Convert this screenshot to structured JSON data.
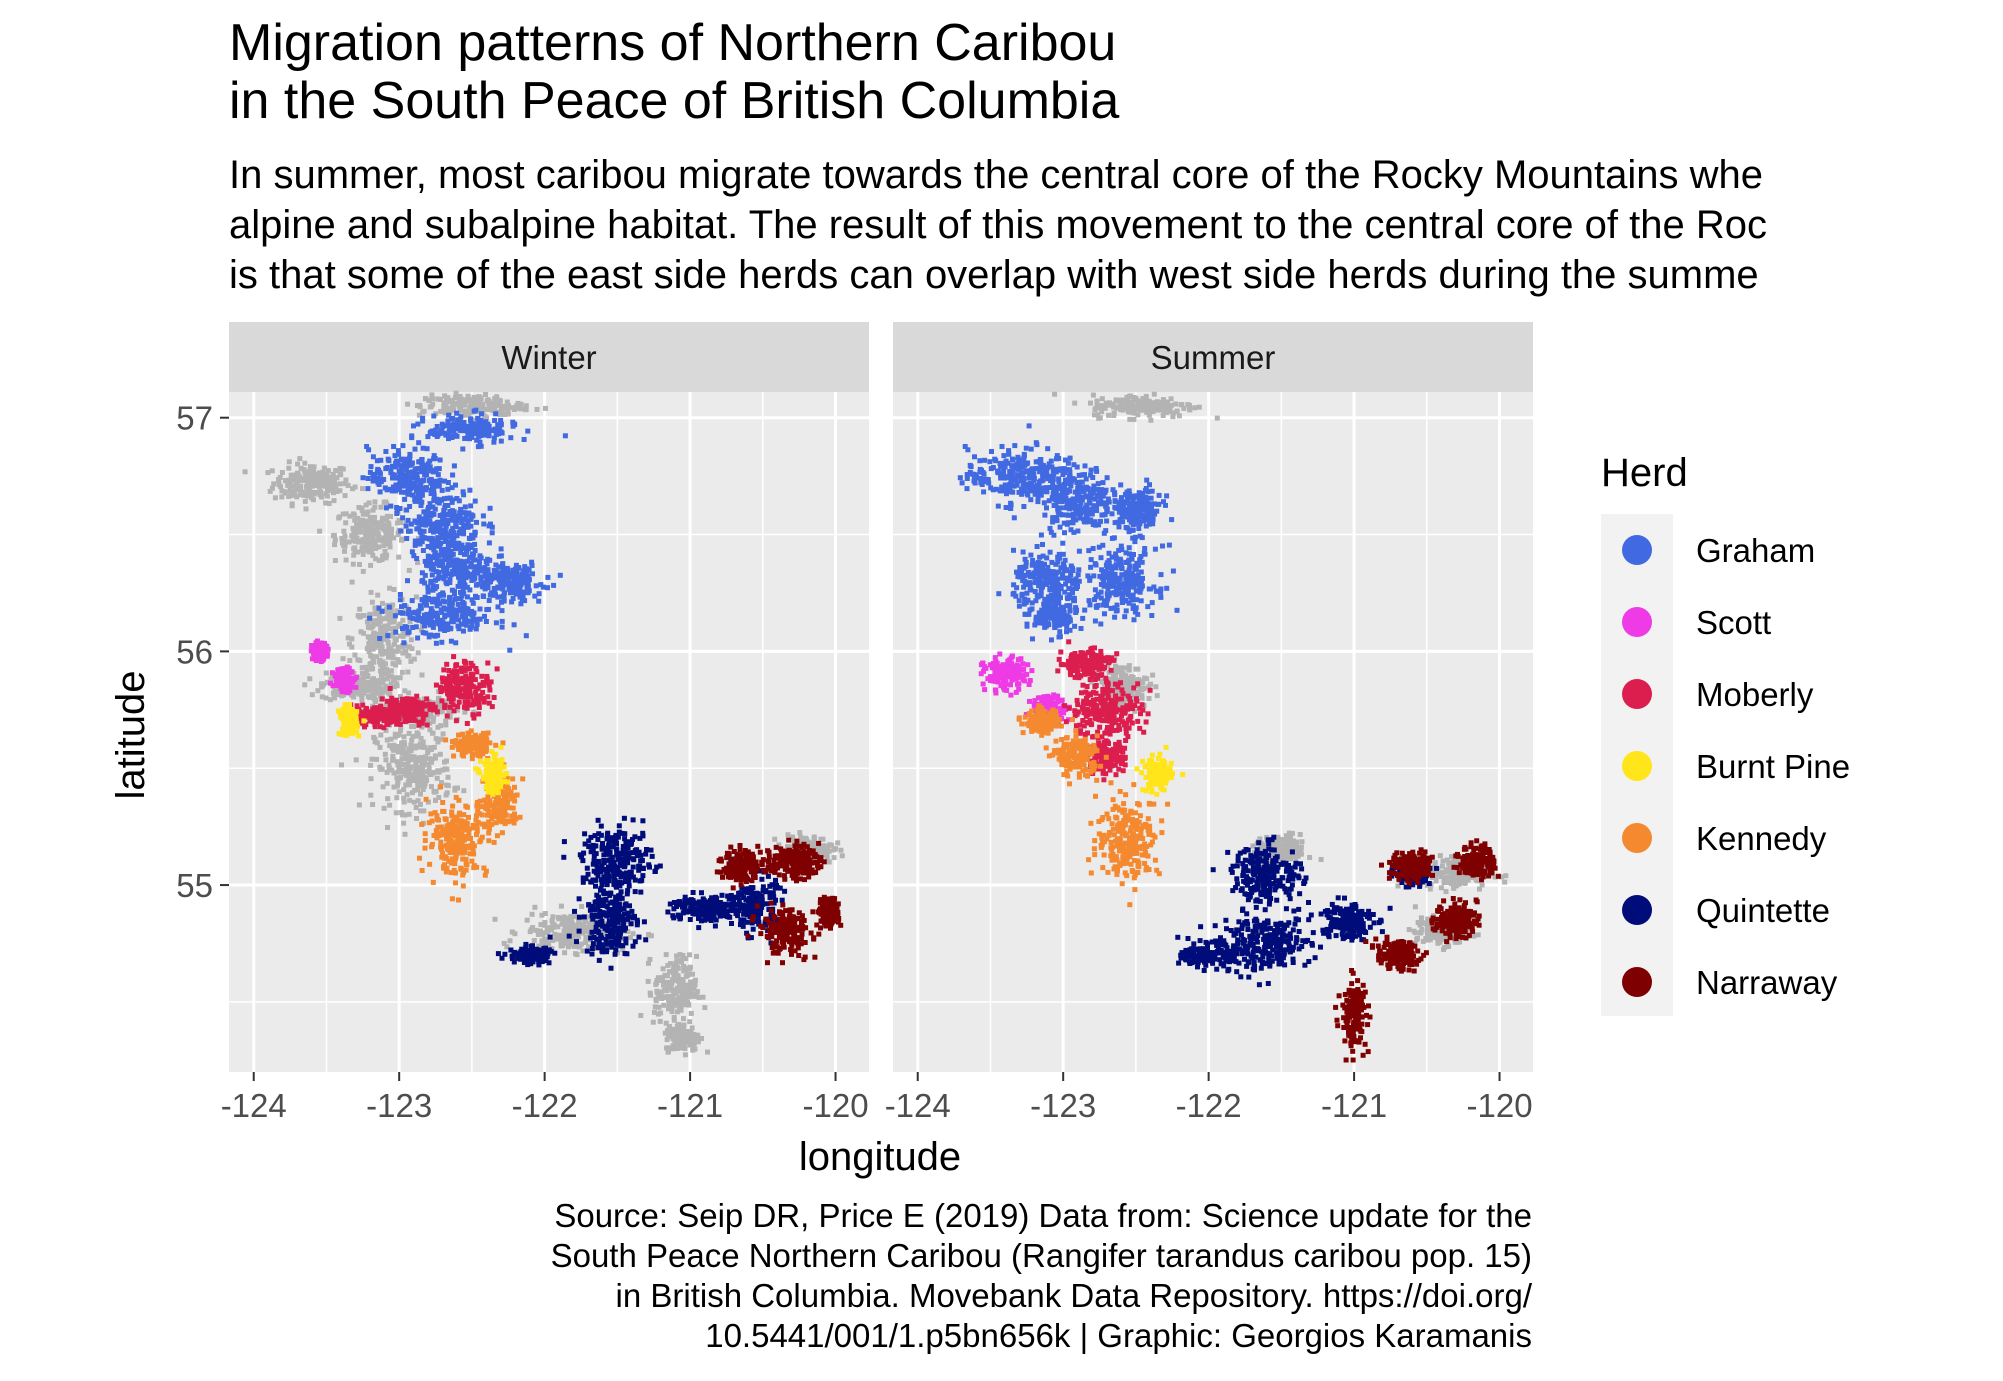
{
  "chart_data": {
    "type": "scatter",
    "title_lines": [
      "Migration patterns of Northern Caribou",
      "in the South Peace of British Columbia"
    ],
    "subtitle_lines": [
      "In summer, most caribou migrate towards the central core of the Rocky Mountains whe",
      "alpine and subalpine habitat. The result of this movement to the central core of the Roc",
      "is that some of the east side herds can overlap with west side herds during the summe"
    ],
    "caption_lines": [
      "Source: Seip DR, Price E (2019) Data from: Science update for the",
      "South Peace Northern Caribou (Rangifer tarandus caribou pop. 15)",
      "in British Columbia. Movebank Data Repository. https://doi.org/",
      "10.5441/001/1.p5bn656k | Graphic: Georgios Karamanis"
    ],
    "xlabel": "longitude",
    "ylabel": "latitude",
    "xlim": [
      -124.17,
      -119.77
    ],
    "ylim": [
      54.2,
      57.11
    ],
    "xticks": [
      -124,
      -123,
      -122,
      -121,
      -120
    ],
    "yticks": [
      55,
      56,
      57
    ],
    "xtick_labels": [
      "-124",
      "-123",
      "-122",
      "-121",
      "-120"
    ],
    "ytick_labels": [
      "55",
      "56",
      "57"
    ],
    "grid": true,
    "legend_position": "right",
    "legend_title": "Herd",
    "background_color": "#EBEBEB",
    "strip_color": "#D9D9D9",
    "other_color": "#B3B3B3",
    "facets": [
      {
        "name": "Winter",
        "series": [
          {
            "herd": "Graham",
            "clusters": [
              {
                "cx": -122.95,
                "cy": 56.75,
                "sx": 0.22,
                "sy": 0.1
              },
              {
                "cx": -122.7,
                "cy": 56.55,
                "sx": 0.22,
                "sy": 0.12
              },
              {
                "cx": -122.6,
                "cy": 56.35,
                "sx": 0.2,
                "sy": 0.09
              },
              {
                "cx": -122.25,
                "cy": 56.3,
                "sx": 0.2,
                "sy": 0.07
              },
              {
                "cx": -122.7,
                "cy": 56.15,
                "sx": 0.3,
                "sy": 0.08
              },
              {
                "cx": -122.5,
                "cy": 56.95,
                "sx": 0.25,
                "sy": 0.05
              }
            ]
          },
          {
            "herd": "Scott",
            "clusters": [
              {
                "cx": -123.55,
                "cy": 56.0,
                "sx": 0.04,
                "sy": 0.03
              },
              {
                "cx": -123.38,
                "cy": 55.88,
                "sx": 0.06,
                "sy": 0.04
              }
            ]
          },
          {
            "herd": "Moberly",
            "clusters": [
              {
                "cx": -122.55,
                "cy": 55.85,
                "sx": 0.15,
                "sy": 0.09
              },
              {
                "cx": -122.95,
                "cy": 55.75,
                "sx": 0.15,
                "sy": 0.05
              },
              {
                "cx": -123.2,
                "cy": 55.72,
                "sx": 0.15,
                "sy": 0.03
              }
            ]
          },
          {
            "herd": "Burnt Pine",
            "clusters": [
              {
                "cx": -122.35,
                "cy": 55.47,
                "sx": 0.07,
                "sy": 0.06
              },
              {
                "cx": -123.35,
                "cy": 55.7,
                "sx": 0.05,
                "sy": 0.05
              }
            ]
          },
          {
            "herd": "Kennedy",
            "clusters": [
              {
                "cx": -122.6,
                "cy": 55.2,
                "sx": 0.17,
                "sy": 0.13
              },
              {
                "cx": -122.3,
                "cy": 55.35,
                "sx": 0.1,
                "sy": 0.1
              },
              {
                "cx": -122.5,
                "cy": 55.6,
                "sx": 0.1,
                "sy": 0.04
              }
            ]
          },
          {
            "herd": "Quintette",
            "clusters": [
              {
                "cx": -121.5,
                "cy": 55.1,
                "sx": 0.2,
                "sy": 0.12
              },
              {
                "cx": -121.55,
                "cy": 54.85,
                "sx": 0.15,
                "sy": 0.12
              },
              {
                "cx": -120.9,
                "cy": 54.9,
                "sx": 0.2,
                "sy": 0.05
              },
              {
                "cx": -120.55,
                "cy": 54.92,
                "sx": 0.12,
                "sy": 0.1
              },
              {
                "cx": -122.1,
                "cy": 54.7,
                "sx": 0.12,
                "sy": 0.03
              }
            ]
          },
          {
            "herd": "Narraway",
            "clusters": [
              {
                "cx": -120.35,
                "cy": 54.8,
                "sx": 0.15,
                "sy": 0.08
              },
              {
                "cx": -120.3,
                "cy": 55.1,
                "sx": 0.15,
                "sy": 0.06
              },
              {
                "cx": -120.65,
                "cy": 55.08,
                "sx": 0.1,
                "sy": 0.06
              },
              {
                "cx": -120.05,
                "cy": 54.88,
                "sx": 0.06,
                "sy": 0.05
              }
            ]
          },
          {
            "herd": "Other",
            "clusters": [
              {
                "cx": -123.6,
                "cy": 56.72,
                "sx": 0.22,
                "sy": 0.07
              },
              {
                "cx": -123.2,
                "cy": 56.5,
                "sx": 0.2,
                "sy": 0.1
              },
              {
                "cx": -123.1,
                "cy": 56.05,
                "sx": 0.18,
                "sy": 0.15
              },
              {
                "cx": -123.3,
                "cy": 55.85,
                "sx": 0.2,
                "sy": 0.05
              },
              {
                "cx": -122.9,
                "cy": 55.5,
                "sx": 0.22,
                "sy": 0.15
              },
              {
                "cx": -122.9,
                "cy": 55.75,
                "sx": 0.25,
                "sy": 0.05
              },
              {
                "cx": -121.8,
                "cy": 54.8,
                "sx": 0.3,
                "sy": 0.07
              },
              {
                "cx": -121.1,
                "cy": 54.55,
                "sx": 0.12,
                "sy": 0.12
              },
              {
                "cx": -121.05,
                "cy": 54.35,
                "sx": 0.1,
                "sy": 0.05
              },
              {
                "cx": -120.2,
                "cy": 55.15,
                "sx": 0.15,
                "sy": 0.05
              },
              {
                "cx": -122.5,
                "cy": 57.05,
                "sx": 0.3,
                "sy": 0.04
              }
            ]
          }
        ]
      },
      {
        "name": "Summer",
        "series": [
          {
            "herd": "Graham",
            "clusters": [
              {
                "cx": -123.3,
                "cy": 56.75,
                "sx": 0.3,
                "sy": 0.1
              },
              {
                "cx": -122.9,
                "cy": 56.65,
                "sx": 0.2,
                "sy": 0.12
              },
              {
                "cx": -123.1,
                "cy": 56.3,
                "sx": 0.2,
                "sy": 0.1
              },
              {
                "cx": -122.6,
                "cy": 56.3,
                "sx": 0.2,
                "sy": 0.12
              },
              {
                "cx": -122.5,
                "cy": 56.6,
                "sx": 0.15,
                "sy": 0.08
              },
              {
                "cx": -123.05,
                "cy": 56.15,
                "sx": 0.12,
                "sy": 0.06
              }
            ]
          },
          {
            "herd": "Scott",
            "clusters": [
              {
                "cx": -123.4,
                "cy": 55.9,
                "sx": 0.12,
                "sy": 0.06
              },
              {
                "cx": -123.1,
                "cy": 55.75,
                "sx": 0.1,
                "sy": 0.05
              }
            ]
          },
          {
            "herd": "Moberly",
            "clusters": [
              {
                "cx": -122.7,
                "cy": 55.75,
                "sx": 0.2,
                "sy": 0.1
              },
              {
                "cx": -122.85,
                "cy": 55.95,
                "sx": 0.15,
                "sy": 0.05
              },
              {
                "cx": -122.7,
                "cy": 55.55,
                "sx": 0.1,
                "sy": 0.05
              }
            ]
          },
          {
            "herd": "Burnt Pine",
            "clusters": [
              {
                "cx": -122.35,
                "cy": 55.47,
                "sx": 0.08,
                "sy": 0.06
              }
            ]
          },
          {
            "herd": "Kennedy",
            "clusters": [
              {
                "cx": -122.55,
                "cy": 55.2,
                "sx": 0.18,
                "sy": 0.14
              },
              {
                "cx": -122.9,
                "cy": 55.55,
                "sx": 0.12,
                "sy": 0.07
              },
              {
                "cx": -123.15,
                "cy": 55.7,
                "sx": 0.1,
                "sy": 0.04
              }
            ]
          },
          {
            "herd": "Quintette",
            "clusters": [
              {
                "cx": -121.6,
                "cy": 55.05,
                "sx": 0.2,
                "sy": 0.1
              },
              {
                "cx": -121.6,
                "cy": 54.75,
                "sx": 0.25,
                "sy": 0.1
              },
              {
                "cx": -121.05,
                "cy": 54.85,
                "sx": 0.15,
                "sy": 0.07
              },
              {
                "cx": -122.0,
                "cy": 54.7,
                "sx": 0.15,
                "sy": 0.04
              },
              {
                "cx": -120.6,
                "cy": 55.05,
                "sx": 0.1,
                "sy": 0.04
              }
            ]
          },
          {
            "herd": "Narraway",
            "clusters": [
              {
                "cx": -121.0,
                "cy": 54.45,
                "sx": 0.07,
                "sy": 0.12
              },
              {
                "cx": -120.7,
                "cy": 54.7,
                "sx": 0.12,
                "sy": 0.05
              },
              {
                "cx": -120.3,
                "cy": 54.85,
                "sx": 0.12,
                "sy": 0.06
              },
              {
                "cx": -120.15,
                "cy": 55.1,
                "sx": 0.1,
                "sy": 0.06
              },
              {
                "cx": -120.6,
                "cy": 55.08,
                "sx": 0.12,
                "sy": 0.05
              }
            ]
          },
          {
            "herd": "Other",
            "clusters": [
              {
                "cx": -121.5,
                "cy": 55.15,
                "sx": 0.15,
                "sy": 0.05
              },
              {
                "cx": -120.3,
                "cy": 55.05,
                "sx": 0.2,
                "sy": 0.06
              },
              {
                "cx": -122.45,
                "cy": 57.05,
                "sx": 0.3,
                "sy": 0.04
              },
              {
                "cx": -122.6,
                "cy": 55.85,
                "sx": 0.15,
                "sy": 0.08
              },
              {
                "cx": -120.4,
                "cy": 54.8,
                "sx": 0.15,
                "sy": 0.05
              }
            ]
          }
        ]
      }
    ],
    "legend": [
      {
        "name": "Graham",
        "color": "#4169E1"
      },
      {
        "name": "Scott",
        "color": "#EE3BE6"
      },
      {
        "name": "Moberly",
        "color": "#DC1E4E"
      },
      {
        "name": "Burnt Pine",
        "color": "#FFE51A"
      },
      {
        "name": "Kennedy",
        "color": "#F4892F"
      },
      {
        "name": "Quintette",
        "color": "#000C7A"
      },
      {
        "name": "Narraway",
        "color": "#7F0000"
      }
    ]
  }
}
